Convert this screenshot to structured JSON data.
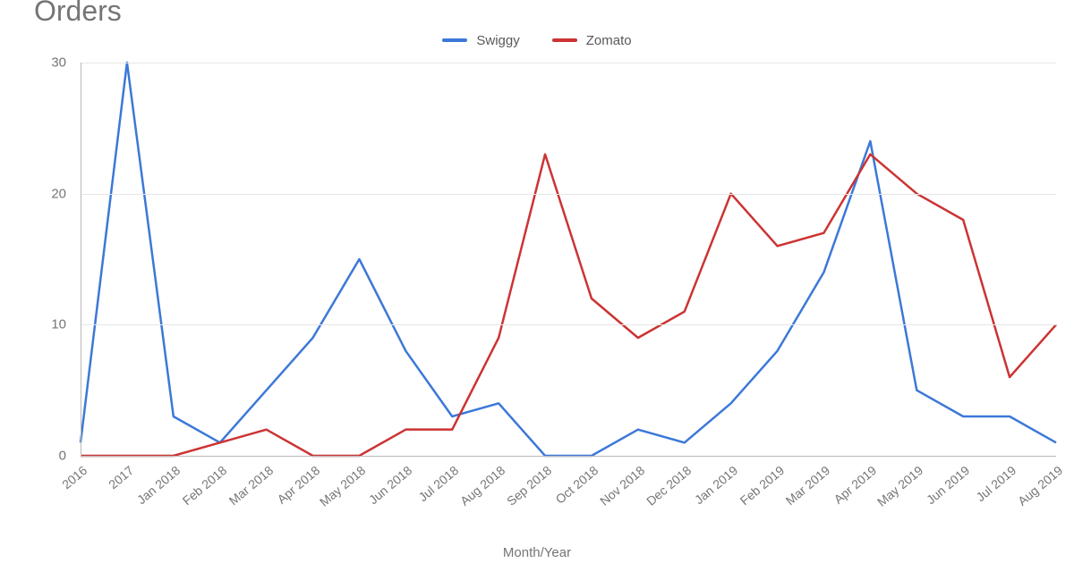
{
  "chart": {
    "type": "line",
    "title": "Orders",
    "x_axis_title": "Month/Year",
    "title_fontsize": 32,
    "title_color": "#757575",
    "background_color": "#ffffff",
    "gridline_color": "#e6e6e6",
    "axis_line_color": "#b7b7b7",
    "tick_label_fontsize": 15,
    "tick_label_color": "#757575",
    "ylim": [
      0,
      30
    ],
    "yticks": [
      0,
      10,
      20,
      30
    ],
    "line_width": 2.5,
    "categories": [
      "2016",
      "2017",
      "Jan 2018",
      "Feb 2018",
      "Mar 2018",
      "Apr 2018",
      "May 2018",
      "Jun 2018",
      "Jul 2018",
      "Aug 2018",
      "Sep 2018",
      "Oct 2018",
      "Nov 2018",
      "Dec 2018",
      "Jan 2019",
      "Feb 2019",
      "Mar 2019",
      "Apr 2019",
      "May 2019",
      "Jun 2019",
      "Jul 2019",
      "Aug 2019"
    ],
    "series": [
      {
        "name": "Swiggy",
        "color": "#3c78d8",
        "values": [
          1,
          30,
          3,
          1,
          5,
          9,
          15,
          8,
          3,
          4,
          0,
          0,
          2,
          1,
          4,
          8,
          14,
          24,
          5,
          3,
          3,
          1
        ]
      },
      {
        "name": "Zomato",
        "color": "#cc3333",
        "values": [
          0,
          0,
          0,
          1,
          2,
          0,
          0,
          2,
          2,
          9,
          23,
          12,
          9,
          11,
          20,
          16,
          17,
          23,
          20,
          18,
          6,
          10
        ]
      }
    ],
    "legend": {
      "position": "top",
      "fontsize": 15,
      "label_color": "#595959"
    }
  }
}
